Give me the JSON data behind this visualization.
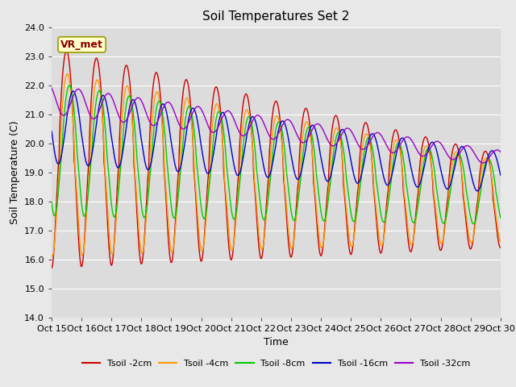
{
  "title": "Soil Temperatures Set 2",
  "xlabel": "Time",
  "ylabel": "Soil Temperature (C)",
  "ylim": [
    14.0,
    24.0
  ],
  "yticks": [
    14.0,
    15.0,
    16.0,
    17.0,
    18.0,
    19.0,
    20.0,
    21.0,
    22.0,
    23.0,
    24.0
  ],
  "xtick_labels": [
    "Oct 15",
    "Oct 16",
    "Oct 17",
    "Oct 18",
    "Oct 19",
    "Oct 20",
    "Oct 21",
    "Oct 22",
    "Oct 23",
    "Oct 24",
    "Oct 25",
    "Oct 26",
    "Oct 27",
    "Oct 28",
    "Oct 29",
    "Oct 30"
  ],
  "colors": {
    "Tsoil -2cm": "#cc0000",
    "Tsoil -4cm": "#ff9900",
    "Tsoil -8cm": "#00cc00",
    "Tsoil -16cm": "#0000cc",
    "Tsoil -32cm": "#9900cc"
  },
  "annotation_text": "VR_met",
  "bg_color": "#e8e8e8",
  "plot_bg_color": "#dcdcdc",
  "grid_color": "#ffffff",
  "title_fontsize": 11,
  "axis_fontsize": 9,
  "tick_fontsize": 8,
  "legend_fontsize": 8
}
